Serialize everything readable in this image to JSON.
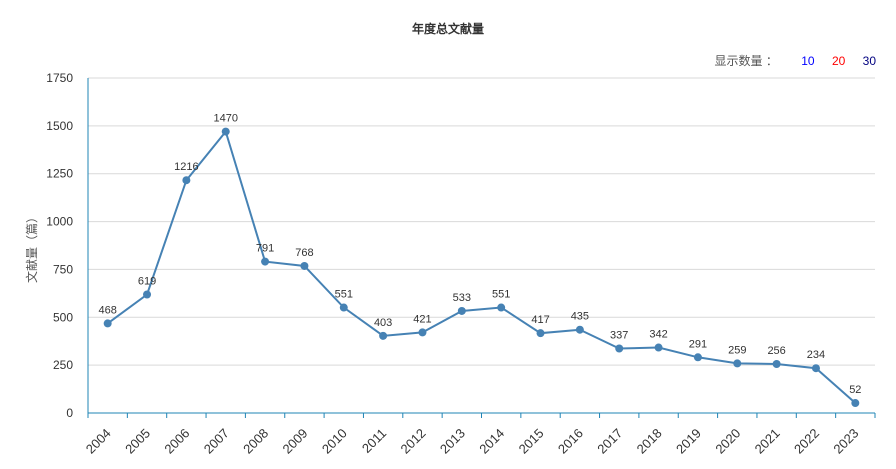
{
  "title": "年度总文献量",
  "count_switch": {
    "label": "显示数量 ：",
    "options": [
      {
        "label": "10",
        "color": "#0000ff"
      },
      {
        "label": "20",
        "color": "#ff0000"
      },
      {
        "label": "30",
        "color": "#000080"
      }
    ]
  },
  "chart_data": {
    "type": "line",
    "title": "年度总文献量",
    "xlabel": "",
    "ylabel": "文献量（篇）",
    "ylim": [
      0,
      1750
    ],
    "yticks": [
      0,
      250,
      500,
      750,
      1000,
      1250,
      1500,
      1750
    ],
    "categories": [
      "2004",
      "2005",
      "2006",
      "2007",
      "2008",
      "2009",
      "2010",
      "2011",
      "2012",
      "2013",
      "2014",
      "2015",
      "2016",
      "2017",
      "2018",
      "2019",
      "2020",
      "2021",
      "2022",
      "2023"
    ],
    "series": [
      {
        "values": [
          468,
          619,
          1216,
          1470,
          791,
          768,
          551,
          403,
          421,
          533,
          551,
          417,
          435,
          337,
          342,
          291,
          259,
          256,
          234,
          52
        ]
      }
    ],
    "grid": true,
    "colors": {
      "line": "#4682b4",
      "axis": "#1f84b5",
      "grid": "#d9d9d9",
      "text": "#333333"
    }
  }
}
